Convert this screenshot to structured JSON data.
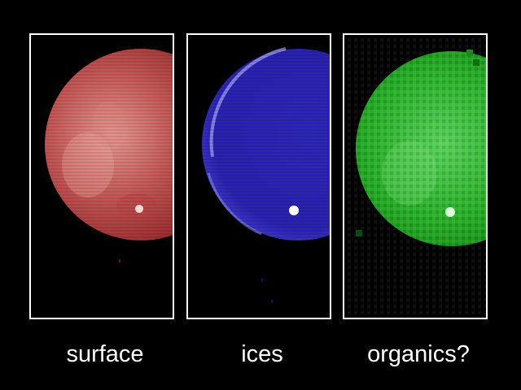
{
  "panels": [
    {
      "label": "surface",
      "color": "#c84a48"
    },
    {
      "label": "ices",
      "color": "#3a32c8"
    },
    {
      "label": "organics?",
      "color": "#22b022"
    }
  ],
  "colors": {
    "background": "#000000",
    "frame": "#ffffff",
    "text": "#ffffff"
  }
}
